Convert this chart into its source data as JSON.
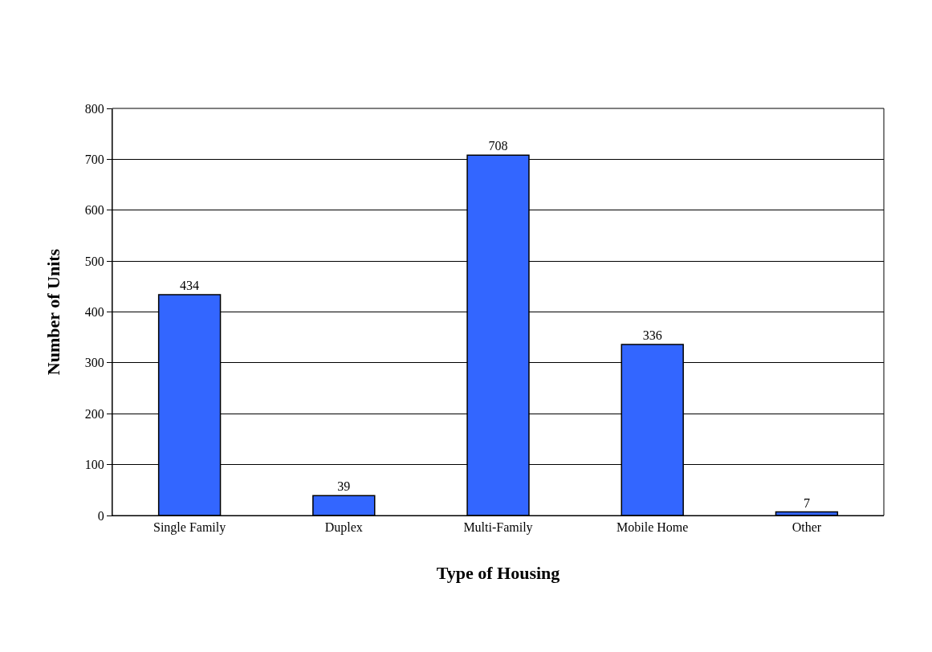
{
  "chart_data": {
    "type": "bar",
    "xlabel": "Type of Housing",
    "ylabel": "Number of Units",
    "categories": [
      "Single Family",
      "Duplex",
      "Multi-Family",
      "Mobile Home",
      "Other"
    ],
    "values": [
      434,
      39,
      708,
      336,
      7
    ],
    "color": "#3366ff",
    "ylim": [
      0,
      800
    ],
    "yticks": [
      0,
      100,
      200,
      300,
      400,
      500,
      600,
      700,
      800
    ],
    "grid": "y",
    "data_labels": true
  }
}
